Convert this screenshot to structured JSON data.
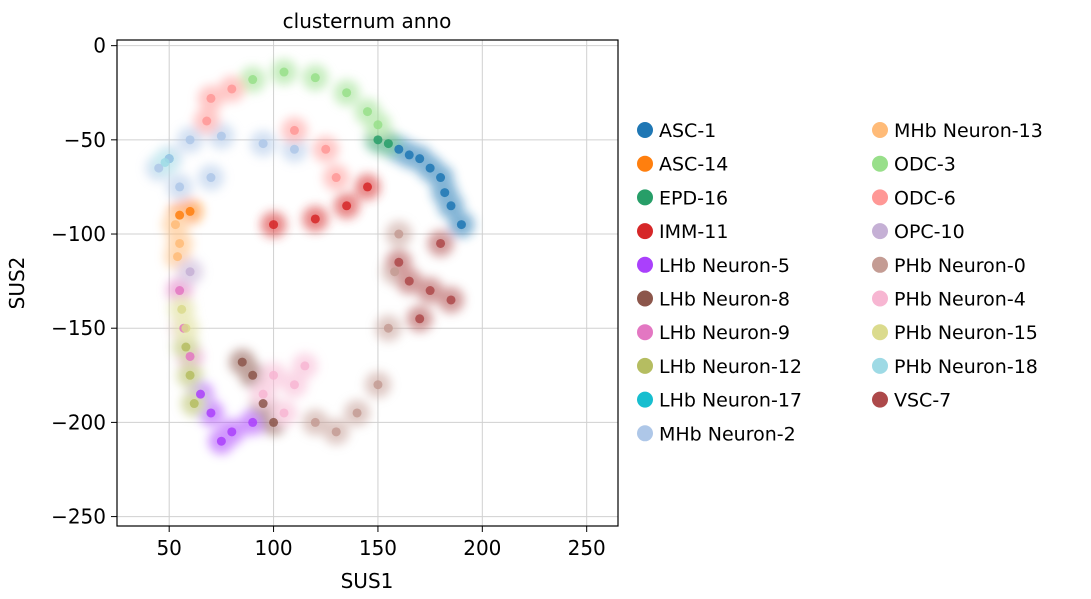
{
  "chart_data": {
    "type": "scatter",
    "title": "clusternum anno",
    "xlabel": "SUS1",
    "ylabel": "SUS2",
    "xlim": [
      25,
      265
    ],
    "ylim": [
      -255,
      3
    ],
    "xticks": [
      50,
      100,
      150,
      200,
      250
    ],
    "xtick_labels": [
      "50",
      "100",
      "150",
      "200",
      "250"
    ],
    "yticks": [
      0,
      -50,
      -100,
      -150,
      -200,
      -250
    ],
    "ytick_labels": [
      "0",
      "−50",
      "−100",
      "−150",
      "−200",
      "−250"
    ],
    "grid": true,
    "legend_placement": "right",
    "series": [
      {
        "name": "ASC-1",
        "color": "#1f77b4",
        "points": [
          [
            160,
            -55
          ],
          [
            170,
            -60
          ],
          [
            180,
            -70
          ],
          [
            185,
            -85
          ],
          [
            175,
            -65
          ],
          [
            165,
            -58
          ],
          [
            190,
            -95
          ],
          [
            182,
            -78
          ]
        ]
      },
      {
        "name": "ASC-14",
        "color": "#ff7f0e",
        "points": [
          [
            55,
            -90
          ],
          [
            60,
            -88
          ]
        ]
      },
      {
        "name": "EPD-16",
        "color": "#279e68",
        "points": [
          [
            150,
            -50
          ],
          [
            155,
            -52
          ]
        ]
      },
      {
        "name": "IMM-11",
        "color": "#d62728",
        "points": [
          [
            100,
            -95
          ],
          [
            120,
            -92
          ],
          [
            135,
            -85
          ],
          [
            145,
            -75
          ]
        ]
      },
      {
        "name": "LHb Neuron-5",
        "color": "#aa40fc",
        "points": [
          [
            70,
            -195
          ],
          [
            80,
            -205
          ],
          [
            90,
            -200
          ],
          [
            65,
            -185
          ],
          [
            75,
            -210
          ]
        ]
      },
      {
        "name": "LHb Neuron-8",
        "color": "#8c564b",
        "points": [
          [
            90,
            -175
          ],
          [
            95,
            -190
          ],
          [
            100,
            -200
          ],
          [
            85,
            -168
          ]
        ]
      },
      {
        "name": "LHb Neuron-9",
        "color": "#e377c2",
        "points": [
          [
            55,
            -130
          ],
          [
            57,
            -150
          ],
          [
            60,
            -165
          ]
        ]
      },
      {
        "name": "LHb Neuron-12",
        "color": "#b5bd61",
        "points": [
          [
            58,
            -160
          ],
          [
            60,
            -175
          ],
          [
            62,
            -190
          ]
        ]
      },
      {
        "name": "LHb Neuron-17",
        "color": "#17becf",
        "points": [
          [
            50,
            -60
          ]
        ]
      },
      {
        "name": "MHb Neuron-2",
        "color": "#aec7e8",
        "points": [
          [
            45,
            -65
          ],
          [
            50,
            -60
          ],
          [
            60,
            -50
          ],
          [
            75,
            -48
          ],
          [
            95,
            -52
          ],
          [
            110,
            -55
          ],
          [
            55,
            -75
          ],
          [
            70,
            -70
          ]
        ]
      },
      {
        "name": "MHb Neuron-13",
        "color": "#ffbb78",
        "points": [
          [
            53,
            -95
          ],
          [
            55,
            -105
          ],
          [
            54,
            -112
          ]
        ]
      },
      {
        "name": "ODC-3",
        "color": "#98df8a",
        "points": [
          [
            90,
            -18
          ],
          [
            105,
            -14
          ],
          [
            120,
            -17
          ],
          [
            135,
            -25
          ],
          [
            145,
            -35
          ],
          [
            150,
            -42
          ]
        ]
      },
      {
        "name": "ODC-6",
        "color": "#ff9896",
        "points": [
          [
            70,
            -28
          ],
          [
            80,
            -23
          ],
          [
            68,
            -40
          ],
          [
            110,
            -45
          ],
          [
            125,
            -55
          ],
          [
            130,
            -70
          ]
        ]
      },
      {
        "name": "OPC-10",
        "color": "#c5b0d5",
        "points": [
          [
            60,
            -120
          ]
        ]
      },
      {
        "name": "PHb Neuron-0",
        "color": "#c49c94",
        "points": [
          [
            120,
            -200
          ],
          [
            140,
            -195
          ],
          [
            150,
            -180
          ],
          [
            155,
            -150
          ],
          [
            158,
            -120
          ],
          [
            130,
            -205
          ],
          [
            160,
            -100
          ]
        ]
      },
      {
        "name": "PHb Neuron-4",
        "color": "#f7b6d2",
        "points": [
          [
            100,
            -175
          ],
          [
            110,
            -180
          ],
          [
            95,
            -185
          ],
          [
            105,
            -195
          ],
          [
            115,
            -170
          ]
        ]
      },
      {
        "name": "PHb Neuron-15",
        "color": "#dbdb8d",
        "points": [
          [
            56,
            -140
          ],
          [
            58,
            -150
          ]
        ]
      },
      {
        "name": "PHb Neuron-18",
        "color": "#9edae5",
        "points": [
          [
            48,
            -62
          ]
        ]
      },
      {
        "name": "VSC-7",
        "color": "#ad494a",
        "points": [
          [
            165,
            -125
          ],
          [
            175,
            -130
          ],
          [
            185,
            -135
          ],
          [
            170,
            -145
          ],
          [
            180,
            -105
          ],
          [
            160,
            -115
          ]
        ]
      }
    ]
  }
}
